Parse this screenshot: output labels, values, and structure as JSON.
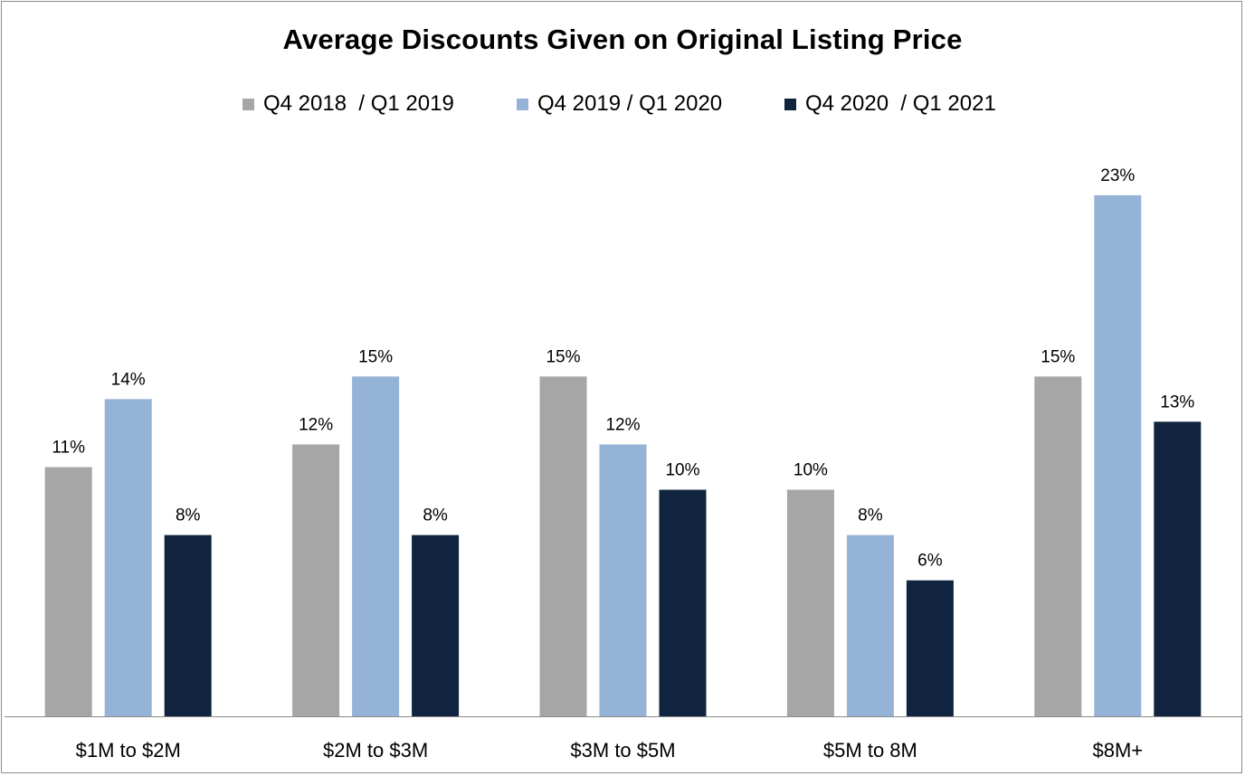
{
  "chart_data": {
    "type": "bar",
    "title": "Average Discounts Given on Original Listing Price",
    "categories": [
      "$1M to $2M",
      "$2M to $3M",
      "$3M to $5M",
      "$5M to 8M",
      "$8M+"
    ],
    "series": [
      {
        "name": "Q4 2018  / Q1 2019",
        "color": "#a6a6a6",
        "values": [
          11,
          12,
          15,
          10,
          15
        ],
        "labels": [
          "11%",
          "12%",
          "15%",
          "10%",
          "15%"
        ]
      },
      {
        "name": "Q4 2019 / Q1 2020",
        "color": "#95b3d7",
        "values": [
          14,
          15,
          12,
          8,
          23
        ],
        "labels": [
          "14%",
          "15%",
          "12%",
          "8%",
          "23%"
        ]
      },
      {
        "name": "Q4 2020  / Q1 2021",
        "color": "#10243f",
        "values": [
          8,
          8,
          10,
          6,
          13
        ],
        "labels": [
          "8%",
          "8%",
          "10%",
          "6%",
          "13%"
        ]
      }
    ],
    "xlabel": "",
    "ylabel": "",
    "ylim": [
      0,
      25
    ],
    "value_unit": "%",
    "grid": false,
    "legend": "top-center"
  }
}
